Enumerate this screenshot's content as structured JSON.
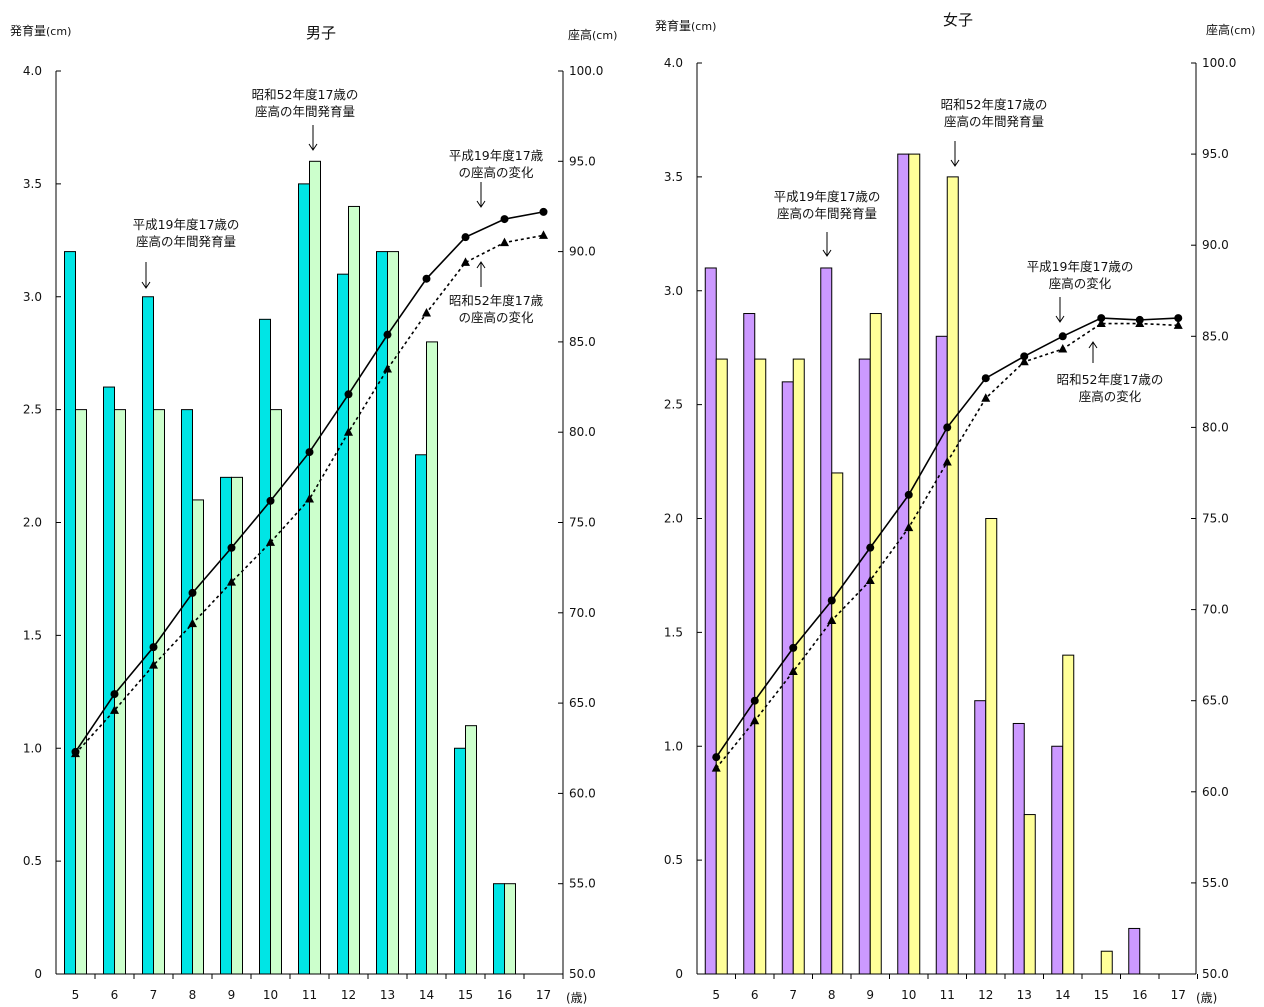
{
  "chart_data": [
    {
      "type": "bar",
      "title": "男子",
      "ylabel_left": "発育量",
      "ylabel_left_unit": "(cm)",
      "ylabel_right": "座高",
      "ylabel_right_unit": "(cm)",
      "xlabel": "(歳)",
      "categories": [
        "5",
        "6",
        "7",
        "8",
        "9",
        "10",
        "11",
        "12",
        "13",
        "14",
        "15",
        "16",
        "17"
      ],
      "ylim_left": [
        0,
        4.0
      ],
      "ylim_right": [
        50.0,
        100.0
      ],
      "yticks_left": [
        "0",
        "0.5",
        "1.0",
        "1.5",
        "2.0",
        "2.5",
        "3.0",
        "3.5",
        "4.0"
      ],
      "yticks_right": [
        "50.0",
        "55.0",
        "60.0",
        "65.0",
        "70.0",
        "75.0",
        "80.0",
        "85.0",
        "90.0",
        "95.0",
        "100.0"
      ],
      "colors": {
        "bar_h19": "#00e5e5",
        "bar_s52": "#ccffcc",
        "line": "#000000"
      },
      "bars": [
        {
          "name": "平成19年度17歳の座高の年間発育量",
          "values": [
            3.2,
            2.6,
            3.0,
            2.5,
            2.2,
            2.9,
            3.5,
            3.1,
            3.2,
            2.3,
            1.0,
            0.4,
            null
          ]
        },
        {
          "name": "昭和52年度17歳の座高の年間発育量",
          "values": [
            2.5,
            2.5,
            2.5,
            2.1,
            2.2,
            2.5,
            3.6,
            3.4,
            3.2,
            2.8,
            1.1,
            0.4,
            null
          ]
        }
      ],
      "lines": [
        {
          "name": "平成19年度17歳の座高の変化",
          "style": "solid-circle",
          "values": [
            62.3,
            65.5,
            68.1,
            71.1,
            73.6,
            76.2,
            78.9,
            82.1,
            85.4,
            88.5,
            90.8,
            91.8,
            92.2
          ]
        },
        {
          "name": "昭和52年度17歳の座高の変化",
          "style": "dashed-triangle",
          "values": [
            62.2,
            64.6,
            67.1,
            69.4,
            71.7,
            73.9,
            76.3,
            80.0,
            83.5,
            86.6,
            89.4,
            90.5,
            90.9
          ]
        }
      ],
      "annotations": [
        {
          "lines": [
            "昭和52年度17歳の",
            "座高の年間発育量"
          ],
          "target": "bar",
          "series": 1,
          "index": 6
        },
        {
          "lines": [
            "平成19年度17歳の",
            "座高の年間発育量"
          ],
          "target": "bar",
          "series": 0,
          "index": 2
        },
        {
          "lines": [
            "平成19年度17歳",
            "の座高の変化"
          ],
          "target": "line",
          "series": 0,
          "index": 10
        },
        {
          "lines": [
            "昭和52年度17歳",
            "の座高の変化"
          ],
          "target": "line",
          "series": 1,
          "index": 10
        }
      ]
    },
    {
      "type": "bar",
      "title": "女子",
      "ylabel_left": "発育量",
      "ylabel_left_unit": "(cm)",
      "ylabel_right": "座高",
      "ylabel_right_unit": "(cm)",
      "xlabel": "(歳)",
      "categories": [
        "5",
        "6",
        "7",
        "8",
        "9",
        "10",
        "11",
        "12",
        "13",
        "14",
        "15",
        "16",
        "17"
      ],
      "ylim_left": [
        0,
        4.0
      ],
      "ylim_right": [
        50.0,
        100.0
      ],
      "yticks_left": [
        "0",
        "0.5",
        "1.0",
        "1.5",
        "2.0",
        "2.5",
        "3.0",
        "3.5",
        "4.0"
      ],
      "yticks_right": [
        "50.0",
        "55.0",
        "60.0",
        "65.0",
        "70.0",
        "75.0",
        "80.0",
        "85.0",
        "90.0",
        "95.0",
        "100.0"
      ],
      "colors": {
        "bar_h19": "#cc99ff",
        "bar_s52": "#ffff99",
        "line": "#000000"
      },
      "bars": [
        {
          "name": "平成19年度17歳の座高の年間発育量",
          "values": [
            3.1,
            2.9,
            2.6,
            3.1,
            2.7,
            3.6,
            2.8,
            1.2,
            1.1,
            1.0,
            null,
            0.2,
            null
          ]
        },
        {
          "name": "昭和52年度17歳の座高の年間発育量",
          "values": [
            2.7,
            2.7,
            2.7,
            2.2,
            2.9,
            3.6,
            3.5,
            2.0,
            0.7,
            1.4,
            0.1,
            null,
            null
          ]
        }
      ],
      "lines": [
        {
          "name": "平成19年度17歳の座高の変化",
          "style": "solid-circle",
          "values": [
            61.9,
            65.0,
            67.9,
            70.5,
            73.4,
            76.3,
            80.0,
            82.7,
            83.9,
            85.0,
            86.0,
            85.9,
            86.0
          ]
        },
        {
          "name": "昭和52年度17歳の座高の変化",
          "style": "dashed-triangle",
          "values": [
            61.3,
            63.9,
            66.6,
            69.4,
            71.6,
            74.5,
            78.1,
            81.6,
            83.6,
            84.3,
            85.7,
            85.7,
            85.6
          ]
        }
      ],
      "annotations": [
        {
          "lines": [
            "昭和52年度17歳の",
            "座高の年間発育量"
          ],
          "target": "bar",
          "series": 1,
          "index": 6
        },
        {
          "lines": [
            "平成19年度17歳の",
            "座高の年間発育量"
          ],
          "target": "bar",
          "series": 0,
          "index": 3
        },
        {
          "lines": [
            "平成19年度17歳の",
            "座高の変化"
          ],
          "target": "line",
          "series": 0,
          "index": 9
        },
        {
          "lines": [
            "昭和52年度17歳の",
            "座高の変化"
          ],
          "target": "line",
          "series": 1,
          "index": 10
        }
      ]
    }
  ]
}
